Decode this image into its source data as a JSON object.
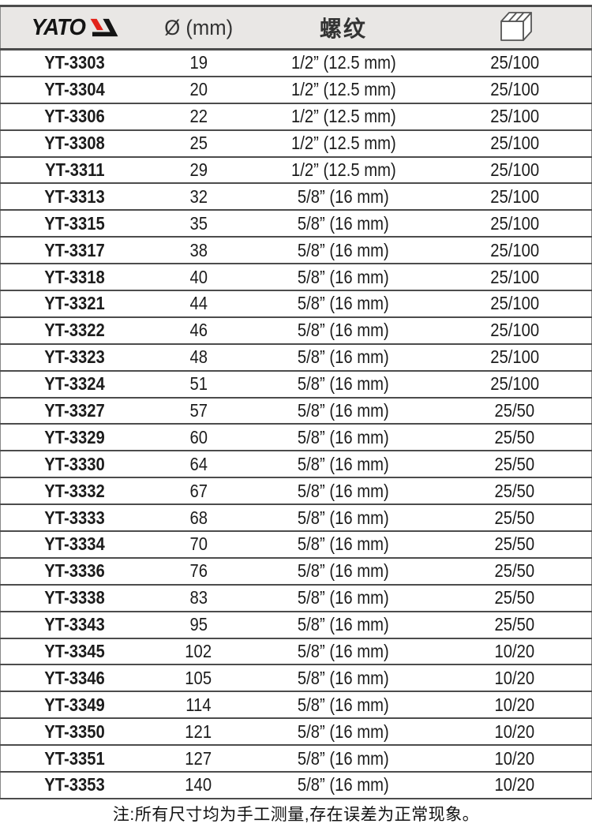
{
  "brand": {
    "name": "YATO"
  },
  "header": {
    "diameter_label": "Ø (mm)",
    "thread_label": "螺纹",
    "package_icon": "box-icon"
  },
  "table": {
    "columns": [
      "model",
      "diameter_mm",
      "thread",
      "package_qty"
    ],
    "rows": [
      {
        "model": "YT-3303",
        "diameter": "19",
        "thread": "1/2” (12.5 mm)",
        "package": "25/100"
      },
      {
        "model": "YT-3304",
        "diameter": "20",
        "thread": "1/2” (12.5 mm)",
        "package": "25/100"
      },
      {
        "model": "YT-3306",
        "diameter": "22",
        "thread": "1/2” (12.5 mm)",
        "package": "25/100"
      },
      {
        "model": "YT-3308",
        "diameter": "25",
        "thread": "1/2” (12.5 mm)",
        "package": "25/100"
      },
      {
        "model": "YT-3311",
        "diameter": "29",
        "thread": "1/2” (12.5 mm)",
        "package": "25/100"
      },
      {
        "model": "YT-3313",
        "diameter": "32",
        "thread": "5/8” (16 mm)",
        "package": "25/100"
      },
      {
        "model": "YT-3315",
        "diameter": "35",
        "thread": "5/8” (16 mm)",
        "package": "25/100"
      },
      {
        "model": "YT-3317",
        "diameter": "38",
        "thread": "5/8” (16 mm)",
        "package": "25/100"
      },
      {
        "model": "YT-3318",
        "diameter": "40",
        "thread": "5/8” (16 mm)",
        "package": "25/100"
      },
      {
        "model": "YT-3321",
        "diameter": "44",
        "thread": "5/8” (16 mm)",
        "package": "25/100"
      },
      {
        "model": "YT-3322",
        "diameter": "46",
        "thread": "5/8” (16 mm)",
        "package": "25/100"
      },
      {
        "model": "YT-3323",
        "diameter": "48",
        "thread": "5/8” (16 mm)",
        "package": "25/100"
      },
      {
        "model": "YT-3324",
        "diameter": "51",
        "thread": "5/8” (16 mm)",
        "package": "25/100"
      },
      {
        "model": "YT-3327",
        "diameter": "57",
        "thread": "5/8” (16 mm)",
        "package": "25/50"
      },
      {
        "model": "YT-3329",
        "diameter": "60",
        "thread": "5/8” (16 mm)",
        "package": "25/50"
      },
      {
        "model": "YT-3330",
        "diameter": "64",
        "thread": "5/8” (16 mm)",
        "package": "25/50"
      },
      {
        "model": "YT-3332",
        "diameter": "67",
        "thread": "5/8” (16 mm)",
        "package": "25/50"
      },
      {
        "model": "YT-3333",
        "diameter": "68",
        "thread": "5/8” (16 mm)",
        "package": "25/50"
      },
      {
        "model": "YT-3334",
        "diameter": "70",
        "thread": "5/8” (16 mm)",
        "package": "25/50"
      },
      {
        "model": "YT-3336",
        "diameter": "76",
        "thread": "5/8” (16 mm)",
        "package": "25/50"
      },
      {
        "model": "YT-3338",
        "diameter": "83",
        "thread": "5/8” (16 mm)",
        "package": "25/50"
      },
      {
        "model": "YT-3343",
        "diameter": "95",
        "thread": "5/8” (16 mm)",
        "package": "25/50"
      },
      {
        "model": "YT-3345",
        "diameter": "102",
        "thread": "5/8” (16 mm)",
        "package": "10/20"
      },
      {
        "model": "YT-3346",
        "diameter": "105",
        "thread": "5/8” (16 mm)",
        "package": "10/20"
      },
      {
        "model": "YT-3349",
        "diameter": "114",
        "thread": "5/8” (16 mm)",
        "package": "10/20"
      },
      {
        "model": "YT-3350",
        "diameter": "121",
        "thread": "5/8” (16 mm)",
        "package": "10/20"
      },
      {
        "model": "YT-3351",
        "diameter": "127",
        "thread": "5/8” (16 mm)",
        "package": "10/20"
      },
      {
        "model": "YT-3353",
        "diameter": "140",
        "thread": "5/8” (16 mm)",
        "package": "10/20"
      }
    ]
  },
  "footer": {
    "note": "注:所有尺寸均为手工测量,存在误差为正常现象。"
  },
  "colors": {
    "brand_red": "#e2231a",
    "brand_black": "#141414",
    "line": "#4c4c4c",
    "header_bg": "#e9e7e5",
    "text": "#1c1c1c"
  }
}
